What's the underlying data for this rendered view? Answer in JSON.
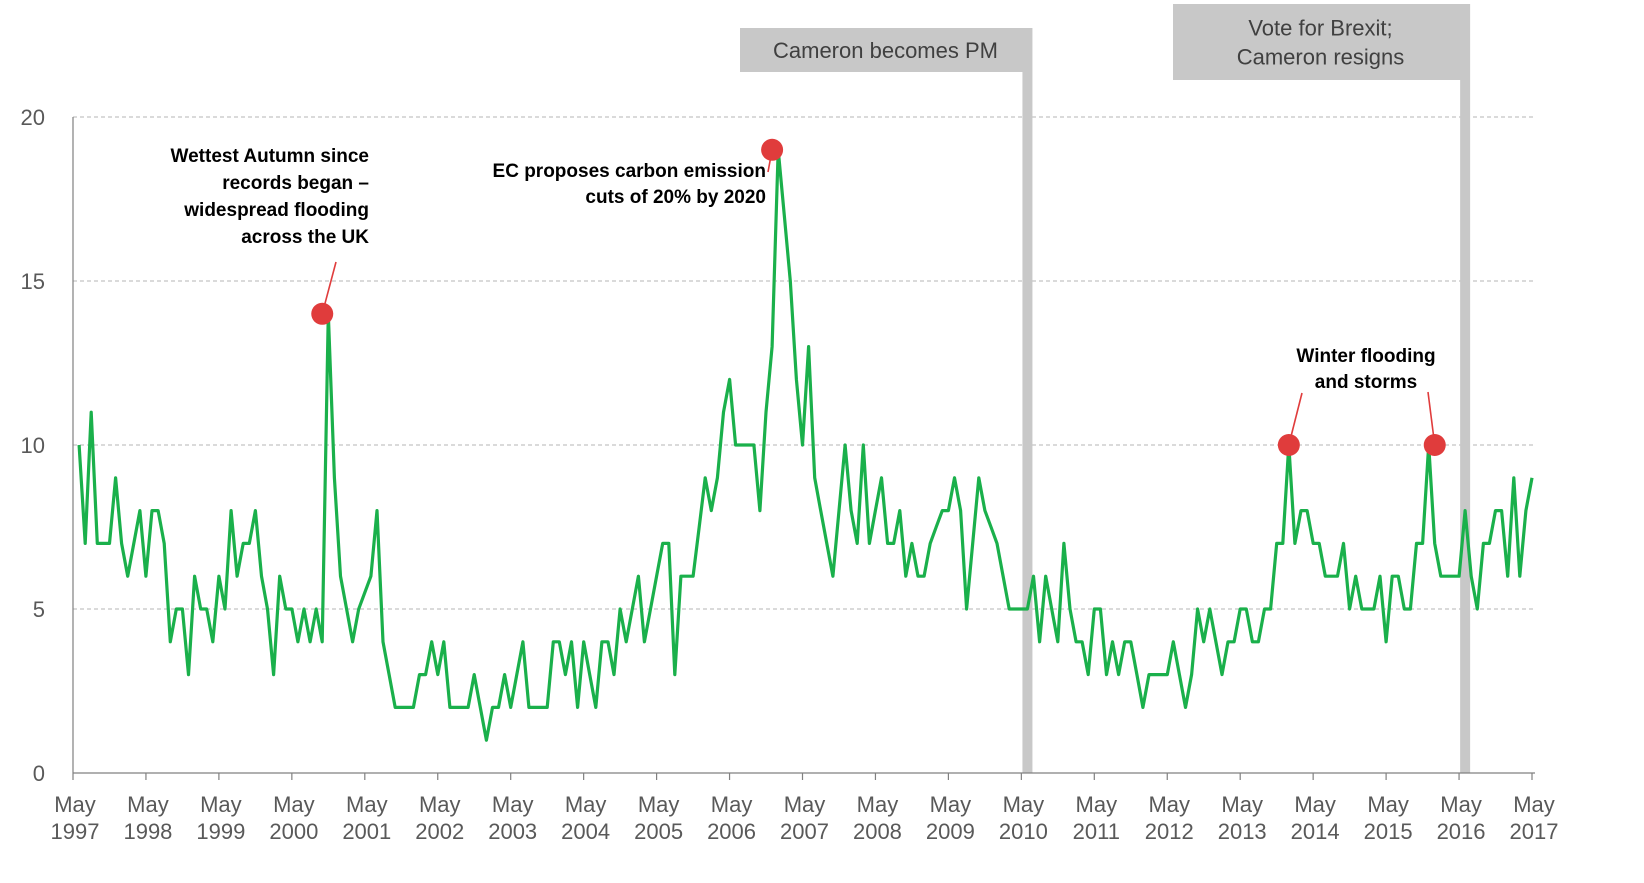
{
  "chart_data": {
    "type": "line",
    "title": "",
    "xlabel": "",
    "ylabel": "",
    "ylim": [
      0,
      20
    ],
    "yticks": [
      "0",
      "5",
      "10",
      "15",
      "20"
    ],
    "grid": "horizontal dashed",
    "x_range": [
      "1997-05",
      "2017-05"
    ],
    "xtick_labels": [
      {
        "month": "May",
        "year": "1997"
      },
      {
        "month": "May",
        "year": "1998"
      },
      {
        "month": "May",
        "year": "1999"
      },
      {
        "month": "May",
        "year": "2000"
      },
      {
        "month": "May",
        "year": "2001"
      },
      {
        "month": "May",
        "year": "2002"
      },
      {
        "month": "May",
        "year": "2003"
      },
      {
        "month": "May",
        "year": "2004"
      },
      {
        "month": "May",
        "year": "2005"
      },
      {
        "month": "May",
        "year": "2006"
      },
      {
        "month": "May",
        "year": "2007"
      },
      {
        "month": "May",
        "year": "2008"
      },
      {
        "month": "May",
        "year": "2009"
      },
      {
        "month": "May",
        "year": "2010"
      },
      {
        "month": "May",
        "year": "2011"
      },
      {
        "month": "May",
        "year": "2012"
      },
      {
        "month": "May",
        "year": "2013"
      },
      {
        "month": "May",
        "year": "2014"
      },
      {
        "month": "May",
        "year": "2015"
      },
      {
        "month": "May",
        "year": "2016"
      },
      {
        "month": "May",
        "year": "2017"
      }
    ],
    "series": [
      {
        "color": "#1ab04b",
        "start": "1997-06",
        "step": "month",
        "values": [
          10,
          7,
          11,
          7,
          7,
          7,
          9,
          7,
          6,
          7,
          8,
          6,
          8,
          8,
          7,
          4,
          5,
          5,
          3,
          6,
          5,
          5,
          4,
          6,
          5,
          8,
          6,
          7,
          7,
          8,
          6,
          5,
          3,
          6,
          5,
          5,
          4,
          5,
          4,
          5,
          4,
          14,
          9,
          6,
          5,
          4,
          5,
          5.5,
          6,
          8,
          4,
          3,
          2,
          2,
          2,
          2,
          3,
          3,
          4,
          3,
          4,
          2,
          2,
          2,
          2,
          3,
          2,
          1,
          2,
          2,
          3,
          2,
          3,
          4,
          2,
          2,
          2,
          2,
          4,
          4,
          3,
          4,
          2,
          4,
          3,
          2,
          4,
          4,
          3,
          5,
          4,
          5,
          6,
          4,
          5,
          6,
          7,
          7,
          3,
          6,
          6,
          6,
          7.5,
          9,
          8,
          9,
          11,
          12,
          10,
          10,
          10,
          10,
          8,
          11,
          13,
          19,
          17,
          15,
          12,
          10,
          13,
          9,
          8,
          7,
          6,
          8,
          10,
          8,
          7,
          10,
          7,
          8,
          9,
          7,
          7,
          8,
          6,
          7,
          6,
          6,
          7,
          7.5,
          8,
          8,
          9,
          8,
          5,
          7,
          9,
          8,
          7.5,
          7,
          6,
          5,
          5,
          5,
          5,
          6,
          4,
          6,
          5,
          4,
          7,
          5,
          4,
          4,
          3,
          5,
          5,
          3,
          4,
          3,
          4,
          4,
          3,
          2,
          3,
          3,
          3,
          3,
          4,
          3,
          2,
          3,
          5,
          4,
          5,
          4,
          3,
          4,
          4,
          5,
          5,
          4,
          4,
          5,
          5,
          7,
          7,
          10,
          7,
          8,
          8,
          7,
          7,
          6,
          6,
          6,
          7,
          5,
          6,
          5,
          5,
          5,
          6,
          4,
          6,
          6,
          5,
          5,
          7,
          7,
          10,
          7,
          6,
          6,
          6,
          6,
          8,
          6,
          5,
          7,
          7,
          8,
          8,
          6,
          9,
          6,
          8,
          9
        ]
      }
    ],
    "events": [
      {
        "date": "2010-06",
        "label": "Cameron becomes PM",
        "color": "#c8c8c8"
      },
      {
        "date": "2016-06",
        "label_lines": [
          "Vote for Brexit;",
          "Cameron resigns"
        ],
        "color": "#c8c8c8"
      }
    ],
    "annotations": [
      {
        "date": "2000-10",
        "value": 14,
        "color": "#e03c3c",
        "lines": [
          "Wettest Autumn since",
          "records began –",
          "widespread flooding",
          "across the UK"
        ]
      },
      {
        "date": "2006-12",
        "value": 19,
        "color": "#e03c3c",
        "lines": [
          "EC proposes carbon emission",
          "cuts of 20% by 2020"
        ]
      },
      {
        "date": "2014-01",
        "value": 10,
        "color": "#e03c3c",
        "lines": [
          "Winter flooding",
          "and storms"
        ]
      },
      {
        "date": "2016-01",
        "value": 10,
        "color": "#e03c3c",
        "lines": []
      }
    ]
  }
}
